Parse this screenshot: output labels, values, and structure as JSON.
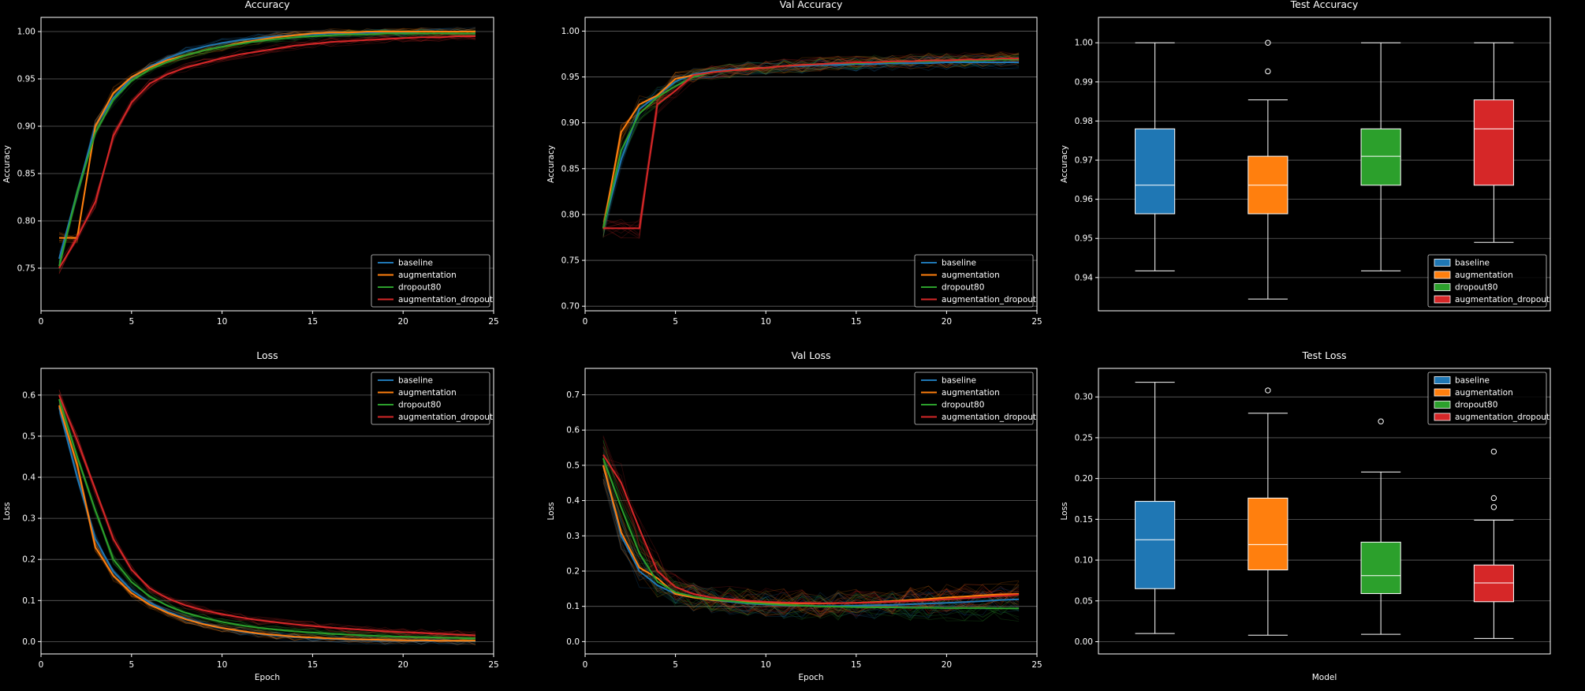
{
  "figure": {
    "background": "#000000",
    "foreground": "#ffffff",
    "grid_color": "#b0b0b0"
  },
  "series_colors": {
    "baseline": "#1f77b4",
    "augmentation": "#ff7f0e",
    "dropout80": "#2ca02c",
    "augmentation_dropout": "#d62728"
  },
  "legend_labels": [
    "baseline",
    "augmentation",
    "dropout80",
    "augmentation_dropout"
  ],
  "chart_data": [
    {
      "type": "line",
      "title": "Accuracy",
      "xlabel": "",
      "ylabel": "Accuracy",
      "xlim": [
        0,
        25
      ],
      "ylim": [
        0.705,
        1.015
      ],
      "xticks": [
        0,
        5,
        10,
        15,
        20,
        25
      ],
      "yticks": [
        0.75,
        0.8,
        0.85,
        0.9,
        0.95,
        1.0
      ],
      "ytick_decimals": 2,
      "grid": "y",
      "legend": "bottom-right",
      "x": [
        1,
        2,
        3,
        4,
        5,
        6,
        7,
        8,
        9,
        10,
        11,
        12,
        13,
        14,
        15,
        16,
        17,
        18,
        19,
        20,
        21,
        22,
        23,
        24
      ],
      "series": [
        {
          "name": "baseline",
          "values": [
            0.76,
            0.83,
            0.9,
            0.93,
            0.951,
            0.963,
            0.972,
            0.979,
            0.984,
            0.988,
            0.991,
            0.993,
            0.995,
            0.996,
            0.997,
            0.998,
            0.998,
            0.999,
            0.999,
            0.999,
            1.0,
            1.0,
            1.0,
            1.0
          ]
        },
        {
          "name": "augmentation",
          "values": [
            0.782,
            0.782,
            0.9,
            0.935,
            0.952,
            0.962,
            0.97,
            0.975,
            0.98,
            0.984,
            0.988,
            0.991,
            0.994,
            0.996,
            0.998,
            0.999,
            0.999,
            1.0,
            1.0,
            1.0,
            1.0,
            1.0,
            1.0,
            1.0
          ]
        },
        {
          "name": "dropout80",
          "values": [
            0.752,
            0.83,
            0.893,
            0.928,
            0.948,
            0.96,
            0.968,
            0.975,
            0.98,
            0.984,
            0.987,
            0.99,
            0.992,
            0.994,
            0.995,
            0.996,
            0.997,
            0.997,
            0.998,
            0.998,
            0.998,
            0.998,
            0.998,
            0.998
          ]
        },
        {
          "name": "augmentation_dropout",
          "values": [
            0.75,
            0.782,
            0.82,
            0.89,
            0.925,
            0.945,
            0.955,
            0.962,
            0.967,
            0.972,
            0.976,
            0.979,
            0.982,
            0.985,
            0.987,
            0.989,
            0.99,
            0.991,
            0.992,
            0.993,
            0.994,
            0.994,
            0.995,
            0.995
          ]
        }
      ]
    },
    {
      "type": "line",
      "title": "Val Accuracy",
      "xlabel": "",
      "ylabel": "Accuracy",
      "xlim": [
        0,
        25
      ],
      "ylim": [
        0.695,
        1.015
      ],
      "xticks": [
        0,
        5,
        10,
        15,
        20,
        25
      ],
      "yticks": [
        0.7,
        0.75,
        0.8,
        0.85,
        0.9,
        0.95,
        1.0
      ],
      "ytick_decimals": 2,
      "grid": "y",
      "legend": "bottom-right",
      "x": [
        1,
        2,
        3,
        4,
        5,
        6,
        7,
        8,
        9,
        10,
        11,
        12,
        13,
        14,
        15,
        16,
        17,
        18,
        19,
        20,
        21,
        22,
        23,
        24
      ],
      "series": [
        {
          "name": "baseline",
          "values": [
            0.785,
            0.86,
            0.915,
            0.93,
            0.945,
            0.953,
            0.956,
            0.958,
            0.959,
            0.96,
            0.962,
            0.962,
            0.963,
            0.963,
            0.964,
            0.964,
            0.965,
            0.965,
            0.965,
            0.966,
            0.966,
            0.966,
            0.966,
            0.966
          ]
        },
        {
          "name": "augmentation",
          "values": [
            0.785,
            0.89,
            0.92,
            0.93,
            0.948,
            0.952,
            0.955,
            0.957,
            0.959,
            0.96,
            0.962,
            0.963,
            0.964,
            0.965,
            0.965,
            0.966,
            0.967,
            0.967,
            0.968,
            0.968,
            0.968,
            0.969,
            0.969,
            0.97
          ]
        },
        {
          "name": "dropout80",
          "values": [
            0.785,
            0.87,
            0.91,
            0.928,
            0.94,
            0.95,
            0.955,
            0.957,
            0.958,
            0.96,
            0.962,
            0.963,
            0.964,
            0.965,
            0.965,
            0.966,
            0.966,
            0.967,
            0.967,
            0.968,
            0.968,
            0.968,
            0.969,
            0.969
          ]
        },
        {
          "name": "augmentation_dropout",
          "values": [
            0.785,
            0.785,
            0.785,
            0.92,
            0.935,
            0.952,
            0.955,
            0.957,
            0.958,
            0.96,
            0.962,
            0.963,
            0.964,
            0.965,
            0.966,
            0.966,
            0.967,
            0.967,
            0.968,
            0.968,
            0.969,
            0.969,
            0.97,
            0.97
          ]
        }
      ]
    },
    {
      "type": "box",
      "title": "Test Accuracy",
      "xlabel": "",
      "ylabel": "Accuracy",
      "ylim": [
        0.9315,
        1.0065
      ],
      "yticks": [
        0.94,
        0.95,
        0.96,
        0.97,
        0.98,
        0.99,
        1.0
      ],
      "ytick_decimals": 2,
      "grid": "y",
      "legend": "bottom-right",
      "boxes": [
        {
          "name": "baseline",
          "whisker_low": 0.9417,
          "q1": 0.9563,
          "median": 0.9636,
          "q3": 0.978,
          "whisker_high": 1.0,
          "outliers": []
        },
        {
          "name": "augmentation",
          "whisker_low": 0.9345,
          "q1": 0.9563,
          "median": 0.9636,
          "q3": 0.971,
          "whisker_high": 0.9854,
          "outliers": [
            0.9927,
            1.0
          ]
        },
        {
          "name": "dropout80",
          "whisker_low": 0.9417,
          "q1": 0.9636,
          "median": 0.971,
          "q3": 0.978,
          "whisker_high": 1.0,
          "outliers": []
        },
        {
          "name": "augmentation_dropout",
          "whisker_low": 0.949,
          "q1": 0.9636,
          "median": 0.978,
          "q3": 0.9854,
          "whisker_high": 1.0,
          "outliers": []
        }
      ]
    },
    {
      "type": "line",
      "title": "Loss",
      "xlabel": "Epoch",
      "ylabel": "Loss",
      "xlim": [
        0,
        25
      ],
      "ylim": [
        -0.03,
        0.665
      ],
      "xticks": [
        0,
        5,
        10,
        15,
        20,
        25
      ],
      "yticks": [
        0.0,
        0.1,
        0.2,
        0.3,
        0.4,
        0.5,
        0.6
      ],
      "ytick_decimals": 1,
      "grid": "y",
      "legend": "top-right",
      "x": [
        1,
        2,
        3,
        4,
        5,
        6,
        7,
        8,
        9,
        10,
        11,
        12,
        13,
        14,
        15,
        16,
        17,
        18,
        19,
        20,
        21,
        22,
        23,
        24
      ],
      "series": [
        {
          "name": "baseline",
          "values": [
            0.57,
            0.4,
            0.25,
            0.17,
            0.125,
            0.095,
            0.073,
            0.056,
            0.043,
            0.033,
            0.025,
            0.019,
            0.015,
            0.011,
            0.009,
            0.007,
            0.005,
            0.004,
            0.003,
            0.003,
            0.002,
            0.002,
            0.002,
            0.001
          ]
        },
        {
          "name": "augmentation",
          "values": [
            0.575,
            0.43,
            0.23,
            0.16,
            0.118,
            0.09,
            0.07,
            0.054,
            0.042,
            0.033,
            0.026,
            0.02,
            0.016,
            0.012,
            0.01,
            0.008,
            0.006,
            0.005,
            0.004,
            0.003,
            0.003,
            0.002,
            0.002,
            0.002
          ]
        },
        {
          "name": "dropout80",
          "values": [
            0.59,
            0.45,
            0.32,
            0.2,
            0.145,
            0.11,
            0.087,
            0.07,
            0.058,
            0.048,
            0.04,
            0.034,
            0.029,
            0.025,
            0.022,
            0.019,
            0.017,
            0.015,
            0.013,
            0.012,
            0.011,
            0.01,
            0.009,
            0.008
          ]
        },
        {
          "name": "augmentation_dropout",
          "values": [
            0.6,
            0.49,
            0.37,
            0.25,
            0.175,
            0.13,
            0.105,
            0.088,
            0.076,
            0.067,
            0.059,
            0.052,
            0.047,
            0.042,
            0.038,
            0.034,
            0.031,
            0.028,
            0.025,
            0.023,
            0.021,
            0.019,
            0.017,
            0.015
          ]
        }
      ]
    },
    {
      "type": "line",
      "title": "Val Loss",
      "xlabel": "Epoch",
      "ylabel": "Loss",
      "xlim": [
        0,
        25
      ],
      "ylim": [
        -0.035,
        0.775
      ],
      "xticks": [
        0,
        5,
        10,
        15,
        20,
        25
      ],
      "yticks": [
        0.0,
        0.1,
        0.2,
        0.3,
        0.4,
        0.5,
        0.6,
        0.7
      ],
      "ytick_decimals": 1,
      "grid": "y",
      "legend": "top-right",
      "x": [
        1,
        2,
        3,
        4,
        5,
        6,
        7,
        8,
        9,
        10,
        11,
        12,
        13,
        14,
        15,
        16,
        17,
        18,
        19,
        20,
        21,
        22,
        23,
        24
      ],
      "series": [
        {
          "name": "baseline",
          "values": [
            0.5,
            0.3,
            0.2,
            0.16,
            0.135,
            0.125,
            0.118,
            0.113,
            0.108,
            0.105,
            0.103,
            0.102,
            0.101,
            0.101,
            0.102,
            0.103,
            0.104,
            0.106,
            0.108,
            0.11,
            0.112,
            0.115,
            0.118,
            0.12
          ]
        },
        {
          "name": "augmentation",
          "values": [
            0.5,
            0.31,
            0.21,
            0.18,
            0.135,
            0.125,
            0.118,
            0.115,
            0.112,
            0.11,
            0.109,
            0.108,
            0.108,
            0.109,
            0.11,
            0.112,
            0.115,
            0.118,
            0.121,
            0.125,
            0.128,
            0.131,
            0.134,
            0.135
          ]
        },
        {
          "name": "dropout80",
          "values": [
            0.52,
            0.38,
            0.25,
            0.17,
            0.14,
            0.128,
            0.12,
            0.115,
            0.11,
            0.107,
            0.104,
            0.102,
            0.1,
            0.099,
            0.098,
            0.097,
            0.097,
            0.096,
            0.096,
            0.095,
            0.095,
            0.095,
            0.094,
            0.094
          ]
        },
        {
          "name": "augmentation_dropout",
          "values": [
            0.53,
            0.45,
            0.32,
            0.2,
            0.155,
            0.135,
            0.125,
            0.12,
            0.116,
            0.113,
            0.111,
            0.11,
            0.109,
            0.109,
            0.11,
            0.111,
            0.113,
            0.115,
            0.117,
            0.12,
            0.123,
            0.126,
            0.13,
            0.133
          ]
        }
      ]
    },
    {
      "type": "box",
      "title": "Test Loss",
      "xlabel": "Model",
      "ylabel": "Loss",
      "ylim": [
        -0.015,
        0.335
      ],
      "yticks": [
        0.0,
        0.05,
        0.1,
        0.15,
        0.2,
        0.25,
        0.3
      ],
      "ytick_decimals": 2,
      "grid": "y",
      "legend": "top-right",
      "boxes": [
        {
          "name": "baseline",
          "whisker_low": 0.01,
          "q1": 0.065,
          "median": 0.125,
          "q3": 0.172,
          "whisker_high": 0.318,
          "outliers": []
        },
        {
          "name": "augmentation",
          "whisker_low": 0.008,
          "q1": 0.088,
          "median": 0.119,
          "q3": 0.176,
          "whisker_high": 0.28,
          "outliers": [
            0.308
          ]
        },
        {
          "name": "dropout80",
          "whisker_low": 0.009,
          "q1": 0.059,
          "median": 0.081,
          "q3": 0.122,
          "whisker_high": 0.208,
          "outliers": [
            0.27
          ]
        },
        {
          "name": "augmentation_dropout",
          "whisker_low": 0.004,
          "q1": 0.049,
          "median": 0.072,
          "q3": 0.094,
          "whisker_high": 0.149,
          "outliers": [
            0.165,
            0.176,
            0.233
          ]
        }
      ]
    }
  ]
}
